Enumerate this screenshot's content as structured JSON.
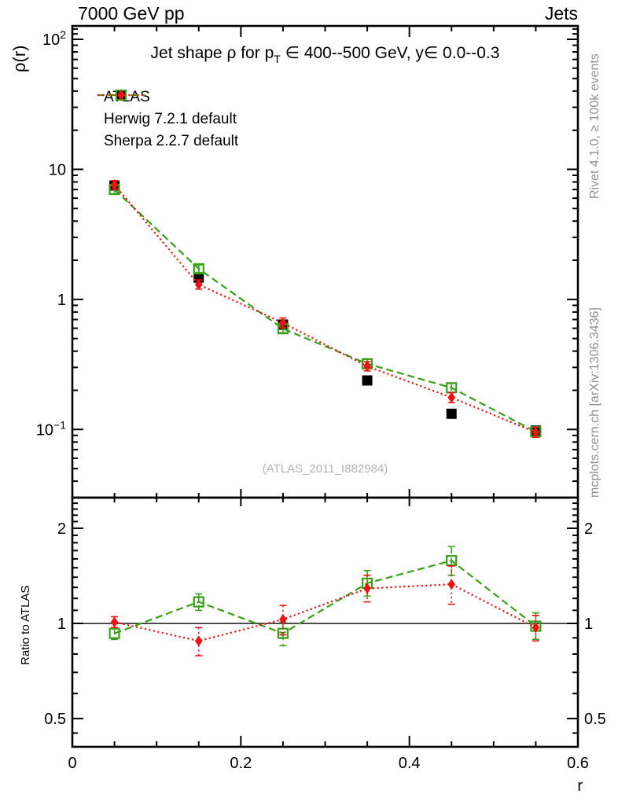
{
  "header": {
    "left": "7000 GeV pp",
    "right": "Jets"
  },
  "side_notes": {
    "rivet": "Rivet 4.1.0, ≥ 100k events",
    "mcplots": "mcplots.cern.ch [arXiv:1306.3436]"
  },
  "watermark": "(ATLAS_2011_I882984)",
  "main_panel": {
    "title_pre": "Jet shape ρ for p",
    "title_sub": "T",
    "title_post": " ∈ 400--500 GeV, y∈ 0.0--0.3",
    "ylabel": "ρ(r)"
  },
  "ratio_panel": {
    "ylabel": "Ratio to ATLAS"
  },
  "legend": {
    "items": [
      {
        "label": "ATLAS"
      },
      {
        "label": "Herwig 7.2.1 default"
      },
      {
        "label": "Sherpa 2.2.7 default"
      }
    ]
  },
  "chart_data": [
    {
      "id": "main",
      "type": "line",
      "yscale": "log",
      "title": "Jet shape ρ for p_T ∈ 400--500 GeV, y∈ 0.0--0.3",
      "xlabel": "",
      "ylabel": "ρ(r)",
      "xlim": [
        0,
        0.6
      ],
      "ylim": [
        0.0299,
        126.7
      ],
      "x": [
        0.05,
        0.15,
        0.25,
        0.35,
        0.45,
        0.55
      ],
      "series": [
        {
          "name": "ATLAS",
          "color": "#000000",
          "marker": "filled-square",
          "line": "none",
          "values": [
            7.5,
            1.47,
            0.64,
            0.238,
            0.132,
            0.098
          ],
          "err_lo": [
            7.2,
            1.41,
            0.615,
            0.229,
            0.127,
            0.094
          ],
          "err_hi": [
            7.8,
            1.53,
            0.665,
            0.247,
            0.137,
            0.102
          ]
        },
        {
          "name": "Herwig 7.2.1 default",
          "color": "#38a018",
          "marker": "open-square",
          "line": "dashed",
          "values": [
            7.0,
            1.72,
            0.595,
            0.32,
            0.209,
            0.096
          ],
          "err_lo": [
            6.5,
            1.61,
            0.555,
            0.297,
            0.193,
            0.089
          ],
          "err_hi": [
            7.5,
            1.84,
            0.638,
            0.345,
            0.226,
            0.104
          ]
        },
        {
          "name": "Sherpa 2.2.7 default",
          "color": "#ee1212",
          "marker": "filled-diamond",
          "line": "dotted",
          "values": [
            7.6,
            1.3,
            0.66,
            0.306,
            0.176,
            0.095
          ],
          "err_lo": [
            7.0,
            1.2,
            0.605,
            0.282,
            0.161,
            0.087
          ],
          "err_hi": [
            8.2,
            1.41,
            0.72,
            0.332,
            0.192,
            0.104
          ]
        }
      ],
      "yticks_major": [
        {
          "value": 100,
          "base": "10",
          "sup": "2"
        },
        {
          "value": 10,
          "base": "10",
          "sup": ""
        },
        {
          "value": 1,
          "base": "1",
          "sup": ""
        },
        {
          "value": 0.1,
          "base": "10",
          "sup": "−1"
        }
      ],
      "xticks_major": [
        {
          "value": 0,
          "label": "0"
        },
        {
          "value": 0.2,
          "label": "0.2"
        },
        {
          "value": 0.4,
          "label": "0.4"
        },
        {
          "value": 0.6,
          "label": "0.6"
        }
      ],
      "xtick_minor_step": 0.05
    },
    {
      "id": "ratio",
      "type": "line",
      "yscale": "log",
      "title": "",
      "xlabel": "r",
      "ylabel": "Ratio to ATLAS",
      "reference_line": 1.0,
      "xlim": [
        0,
        0.6
      ],
      "ylim": [
        0.407,
        2.5
      ],
      "x": [
        0.05,
        0.15,
        0.25,
        0.35,
        0.45,
        0.55
      ],
      "series": [
        {
          "name": "Herwig 7.2.1 default",
          "color": "#38a018",
          "marker": "open-square",
          "line": "dashed",
          "values": [
            0.93,
            1.17,
            0.93,
            1.34,
            1.58,
            0.98
          ],
          "err_lo": [
            0.89,
            1.1,
            0.85,
            1.22,
            1.42,
            0.89
          ],
          "err_hi": [
            0.97,
            1.24,
            1.01,
            1.47,
            1.75,
            1.08
          ]
        },
        {
          "name": "Sherpa 2.2.7 default",
          "color": "#ee1212",
          "marker": "filled-diamond",
          "line": "dotted",
          "values": [
            1.01,
            0.88,
            1.03,
            1.29,
            1.33,
            0.97
          ],
          "err_lo": [
            0.97,
            0.79,
            0.92,
            1.17,
            1.15,
            0.88
          ],
          "err_hi": [
            1.05,
            0.97,
            1.14,
            1.42,
            1.52,
            1.06
          ]
        }
      ],
      "yticks_major": [
        {
          "value": 2,
          "label": "2"
        },
        {
          "value": 1,
          "label": "1"
        },
        {
          "value": 0.5,
          "label": "0.5"
        }
      ],
      "ytick_minors": [
        0.45,
        0.6,
        0.7,
        0.8,
        0.9,
        1.1,
        1.2,
        1.3,
        1.4,
        1.5,
        1.6,
        1.7,
        1.8,
        1.9,
        2.1,
        2.2,
        2.3,
        2.4
      ]
    }
  ]
}
